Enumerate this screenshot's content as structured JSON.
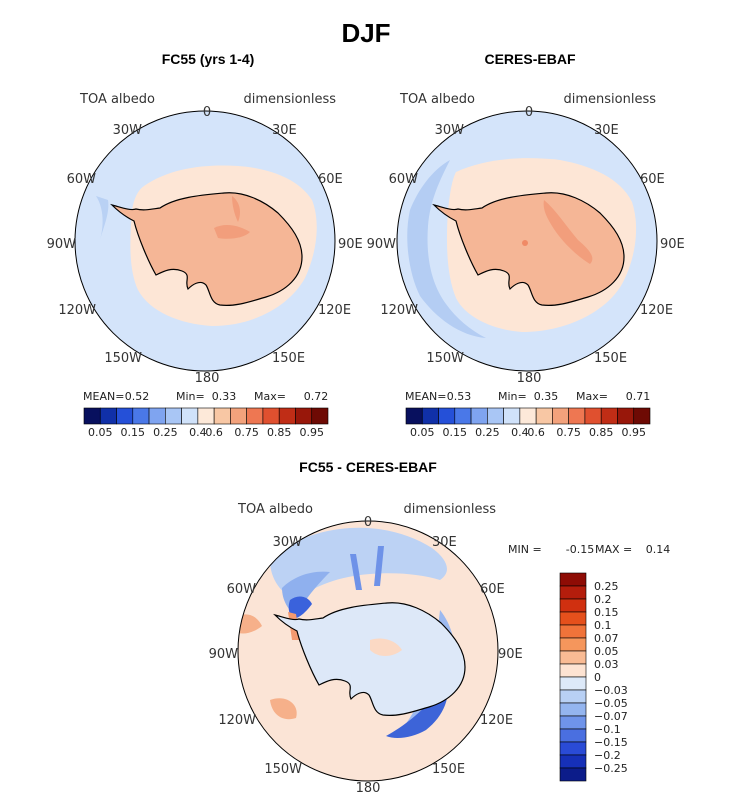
{
  "figure": {
    "title": "DJF",
    "panels": [
      {
        "title": "FC55 (yrs 1-4)",
        "field": "TOA albedo",
        "units": "dimensionless",
        "stats": {
          "mean_label": "MEAN=",
          "mean": "0.52",
          "min_label": "Min=",
          "min": "0.33",
          "max_label": "Max=",
          "max": "0.72"
        }
      },
      {
        "title": "CERES-EBAF",
        "field": "TOA albedo",
        "units": "dimensionless",
        "stats": {
          "mean_label": "MEAN=",
          "mean": "0.53",
          "min_label": "Min=",
          "min": "0.35",
          "max_label": "Max=",
          "max": "0.71"
        }
      },
      {
        "title": "FC55 - CERES-EBAF",
        "field": "TOA albedo",
        "units": "dimensionless",
        "stats": {
          "min_label": "MIN =",
          "min": "-0.15",
          "max_label": "MAX =",
          "max": "0.14"
        }
      }
    ],
    "lon_labels": [
      "0",
      "30E",
      "60E",
      "90E",
      "120E",
      "150E",
      "180",
      "150W",
      "120W",
      "90W",
      "60W",
      "30W"
    ]
  },
  "chart_data": [
    {
      "type": "heatmap",
      "projection": "south-polar-stereographic",
      "title": "FC55 (yrs 1-4)",
      "variable": "TOA albedo",
      "units": "dimensionless",
      "mean": 0.52,
      "min": 0.33,
      "max": 0.72,
      "colorbar_ticks": [
        "0.05",
        "0.15",
        "0.25",
        "0.4",
        "0.6",
        "0.75",
        "0.85",
        "0.95"
      ],
      "colorbar_colors": [
        "#08105e",
        "#1030a8",
        "#2550d8",
        "#4a78e8",
        "#7fa4f0",
        "#a9c6f5",
        "#d0e2fa",
        "#fde9d9",
        "#f8c7a4",
        "#f3a27c",
        "#ee7752",
        "#e0502f",
        "#c02d16",
        "#98170a",
        "#6e0a04"
      ]
    },
    {
      "type": "heatmap",
      "projection": "south-polar-stereographic",
      "title": "CERES-EBAF",
      "variable": "TOA albedo",
      "units": "dimensionless",
      "mean": 0.53,
      "min": 0.35,
      "max": 0.71,
      "colorbar_ticks": [
        "0.05",
        "0.15",
        "0.25",
        "0.4",
        "0.6",
        "0.75",
        "0.85",
        "0.95"
      ]
    },
    {
      "type": "heatmap",
      "projection": "south-polar-stereographic",
      "title": "FC55 - CERES-EBAF",
      "variable": "TOA albedo",
      "units": "dimensionless",
      "min": -0.15,
      "max": 0.14,
      "colorbar_ticks": [
        "0.25",
        "0.2",
        "0.15",
        "0.1",
        "0.07",
        "0.05",
        "0.03",
        "0",
        "−0.03",
        "−0.05",
        "−0.07",
        "−0.1",
        "−0.15",
        "−0.2",
        "−0.25"
      ],
      "colorbar_colors": [
        "#8e0c05",
        "#b41d0c",
        "#d03010",
        "#e5501c",
        "#f0733a",
        "#f5965c",
        "#f9bb94",
        "#fde3d2",
        "#dde9f8",
        "#b8d0f4",
        "#94b5ef",
        "#6f94ea",
        "#4a6fe0",
        "#2a4bd6",
        "#1630b8",
        "#0c1c8a"
      ]
    }
  ]
}
